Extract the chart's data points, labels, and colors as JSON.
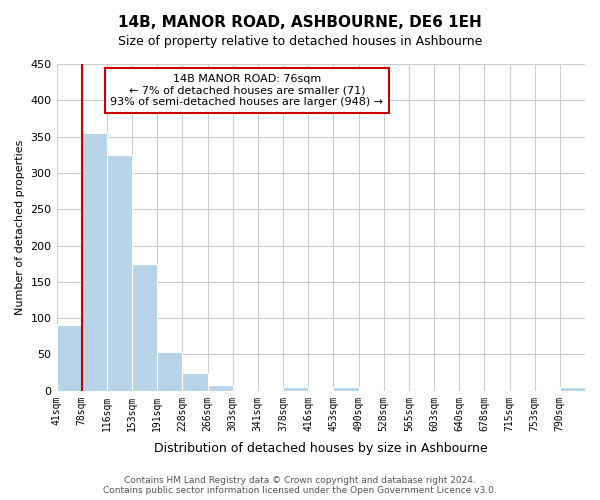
{
  "title": "14B, MANOR ROAD, ASHBOURNE, DE6 1EH",
  "subtitle": "Size of property relative to detached houses in Ashbourne",
  "xlabel": "Distribution of detached houses by size in Ashbourne",
  "ylabel": "Number of detached properties",
  "bin_labels": [
    "41sqm",
    "78sqm",
    "116sqm",
    "153sqm",
    "191sqm",
    "228sqm",
    "266sqm",
    "303sqm",
    "341sqm",
    "378sqm",
    "416sqm",
    "453sqm",
    "490sqm",
    "528sqm",
    "565sqm",
    "603sqm",
    "640sqm",
    "678sqm",
    "715sqm",
    "753sqm",
    "790sqm"
  ],
  "bar_values": [
    91,
    355,
    325,
    175,
    53,
    25,
    8,
    0,
    0,
    5,
    0,
    5,
    0,
    0,
    0,
    0,
    0,
    0,
    0,
    0,
    5
  ],
  "annotation_title": "14B MANOR ROAD: 76sqm",
  "annotation_line1": "← 7% of detached houses are smaller (71)",
  "annotation_line2": "93% of semi-detached houses are larger (948) →",
  "ylim": [
    0,
    450
  ],
  "yticks": [
    0,
    50,
    100,
    150,
    200,
    250,
    300,
    350,
    400,
    450
  ],
  "bar_color": "#b8d4e8",
  "bar_edge_color": "#ffffff",
  "marker_line_color": "#cc0000",
  "annotation_box_color": "#ffffff",
  "annotation_box_edge": "#cc0000",
  "footer1": "Contains HM Land Registry data © Crown copyright and database right 2024.",
  "footer2": "Contains public sector information licensed under the Open Government Licence v3.0.",
  "bg_color": "#ffffff",
  "grid_color": "#cccccc"
}
